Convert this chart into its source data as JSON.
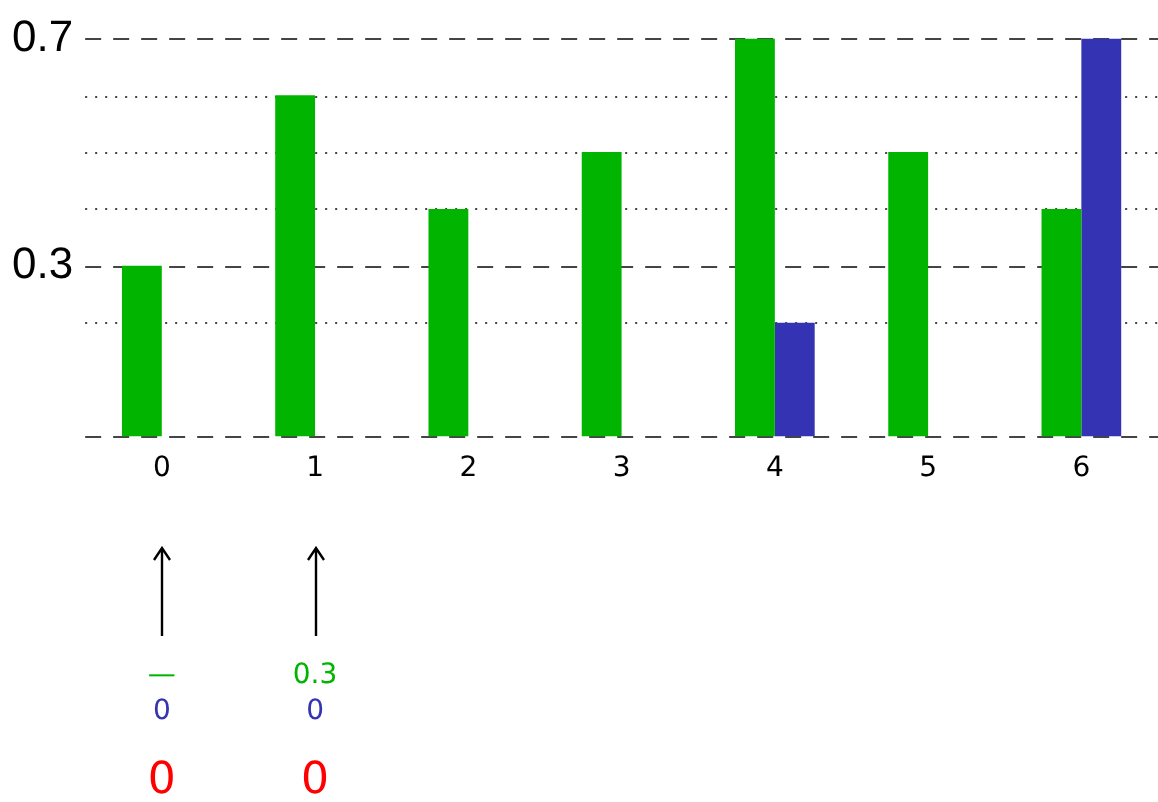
{
  "chart_data": {
    "type": "bar",
    "categories": [
      "0",
      "1",
      "2",
      "3",
      "4",
      "5",
      "6"
    ],
    "series": [
      {
        "color": "#00b400",
        "values": [
          0.3,
          0.6,
          0.4,
          0.5,
          0.7,
          0.5,
          0.4
        ]
      },
      {
        "color": "#3333b4",
        "values": [
          0,
          0,
          0,
          0,
          0.2,
          0,
          0.7
        ]
      }
    ],
    "ylim": [
      0,
      0.7
    ],
    "yticks": [
      {
        "value": 0,
        "label": null
      },
      {
        "value": 0.2,
        "label": null
      },
      0.3,
      {
        "value": 0.4,
        "label": null
      },
      {
        "value": 0.5,
        "label": null
      },
      {
        "value": 0.6,
        "label": null
      },
      0.7
    ],
    "grid": "y",
    "legend": false,
    "annotations": [
      "—",
      "0",
      "0",
      "0.3",
      "0",
      "0"
    ]
  }
}
